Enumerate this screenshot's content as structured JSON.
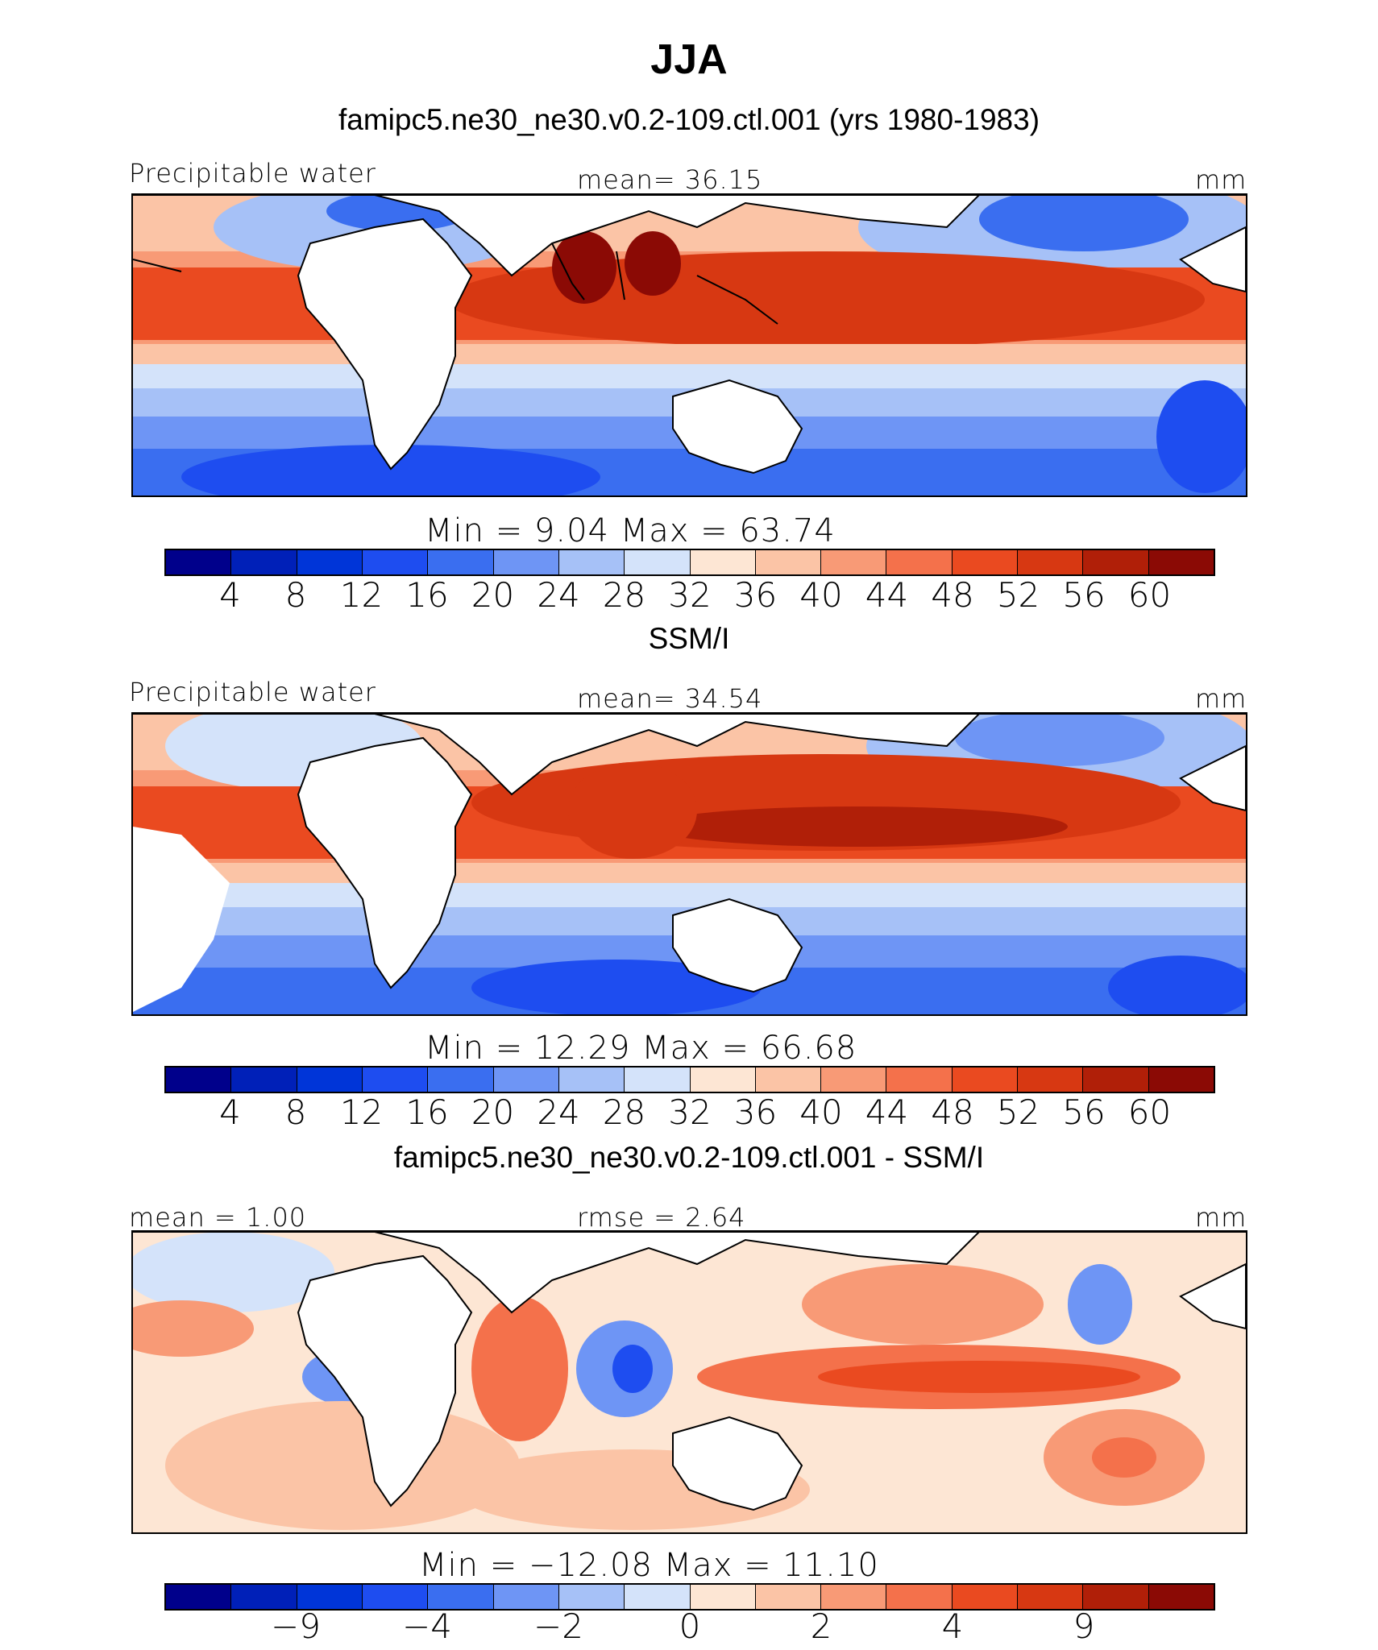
{
  "figure": {
    "title": "JJA"
  },
  "panels": [
    {
      "subtitle": "famipc5.ne30_ne30.v0.2-109.ctl.001 (yrs 1980-1983)",
      "left_label": "Precipitable water",
      "center_label": "mean=  36.15",
      "unit": "mm",
      "minmax": "Min =    9.04  Max =   63.74"
    },
    {
      "subtitle": "SSM/I",
      "left_label": "Precipitable water",
      "center_label": "mean=  34.54",
      "unit": "mm",
      "minmax": "Min =   12.29  Max =   66.68"
    },
    {
      "subtitle": "famipc5.ne30_ne30.v0.2-109.ctl.001 - SSM/I",
      "left_label": "mean =   1.00",
      "center_label": "rmse =   2.64",
      "unit": "mm",
      "minmax": "Min = −12.08  Max =   11.10"
    }
  ],
  "colorbars": {
    "colors": [
      "#00008b",
      "#0020b8",
      "#0035d8",
      "#1e4df0",
      "#3a6ef0",
      "#6e95f5",
      "#a6c1f7",
      "#d4e3fa",
      "#fde6d4",
      "#fbc4a6",
      "#f89a76",
      "#f4714b",
      "#ea4a20",
      "#d73812",
      "#b01f08",
      "#8b0a05"
    ],
    "absolute_ticks": [
      "4",
      "8",
      "12",
      "16",
      "20",
      "24",
      "28",
      "32",
      "36",
      "40",
      "44",
      "48",
      "52",
      "56",
      "60"
    ],
    "difference_ticks": [
      "−9",
      "−4",
      "−2",
      "0",
      "2",
      "4",
      "9"
    ]
  },
  "chart_data": [
    {
      "type": "heatmap",
      "title": "famipc5.ne30_ne30.v0.2-109.ctl.001 (yrs 1980-1983)",
      "variable": "Precipitable water",
      "unit": "mm",
      "mean": 36.15,
      "min": 9.04,
      "max": 63.74,
      "contour_levels": [
        4,
        8,
        12,
        16,
        20,
        24,
        28,
        32,
        36,
        40,
        44,
        48,
        52,
        56,
        60
      ]
    },
    {
      "type": "heatmap",
      "title": "SSM/I",
      "variable": "Precipitable water",
      "unit": "mm",
      "mean": 34.54,
      "min": 12.29,
      "max": 66.68,
      "contour_levels": [
        4,
        8,
        12,
        16,
        20,
        24,
        28,
        32,
        36,
        40,
        44,
        48,
        52,
        56,
        60
      ]
    },
    {
      "type": "heatmap",
      "title": "famipc5.ne30_ne30.v0.2-109.ctl.001 - SSM/I",
      "unit": "mm",
      "mean": 1.0,
      "rmse": 2.64,
      "min": -12.08,
      "max": 11.1,
      "contour_levels": [
        -9,
        -4,
        -2,
        0,
        2,
        4,
        9
      ]
    }
  ]
}
